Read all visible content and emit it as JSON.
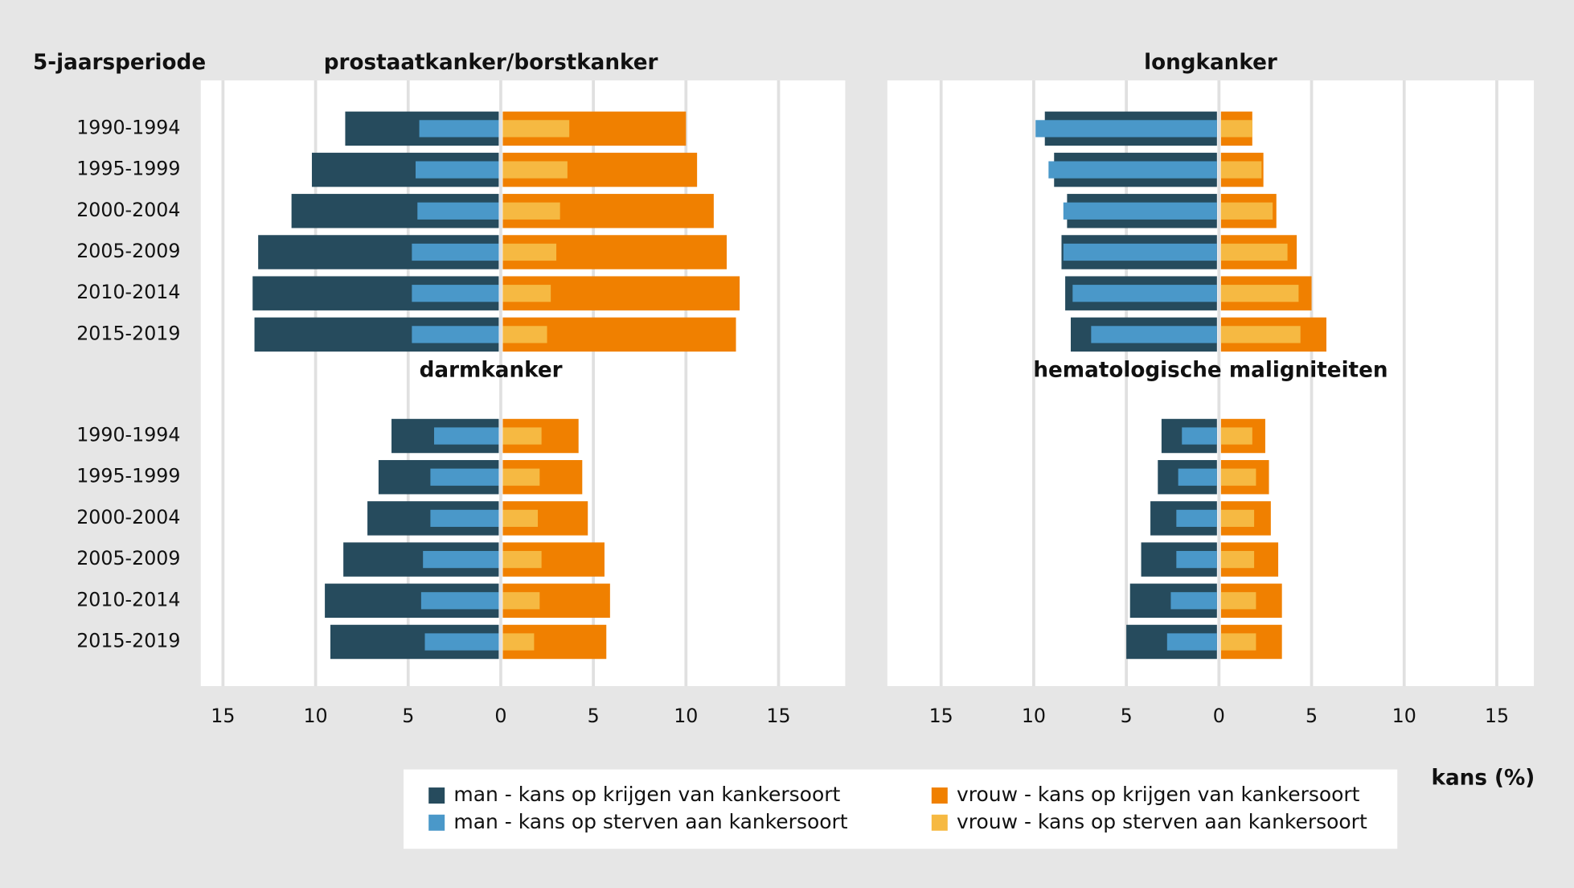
{
  "row_header": "5-jaarsperiode",
  "axis_label": "kans (%)",
  "chart_data": [
    {
      "type": "bar",
      "orientation": "horizontal",
      "title": "prostaatkanker/borstkanker",
      "categories": [
        "1990-1994",
        "1995-1999",
        "2000-2004",
        "2005-2009",
        "2010-2014",
        "2015-2019"
      ],
      "series": [
        {
          "name": "man - kans op krijgen van kankersoort",
          "color": "#264b5d",
          "values": [
            -8.4,
            -10.2,
            -11.3,
            -13.1,
            -13.4,
            -13.3
          ]
        },
        {
          "name": "man - kans op sterven aan kankersoort",
          "color": "#4a98c9",
          "values": [
            -4.4,
            -4.6,
            -4.5,
            -4.8,
            -4.8,
            -4.8
          ]
        },
        {
          "name": "vrouw - kans op krijgen van kankersoort",
          "color": "#f08000",
          "values": [
            10.0,
            10.6,
            11.5,
            12.2,
            12.9,
            12.7
          ]
        },
        {
          "name": " vrouw - kans op sterven aan kankersoort",
          "color": "#f6b942",
          "values": [
            3.7,
            3.6,
            3.2,
            3.0,
            2.7,
            2.5
          ]
        }
      ]
    },
    {
      "type": "bar",
      "orientation": "horizontal",
      "title": "longkanker",
      "series": [
        {
          "color": "#264b5d",
          "values": [
            -9.4,
            -8.9,
            -8.2,
            -8.5,
            -8.3,
            -8.0
          ]
        },
        {
          "color": "#4a98c9",
          "values": [
            -9.9,
            -9.2,
            -8.4,
            -8.4,
            -7.9,
            -6.9
          ]
        },
        {
          "color": "#f08000",
          "values": [
            1.8,
            2.4,
            3.1,
            4.2,
            5.0,
            5.8
          ]
        },
        {
          "color": "#f6b942",
          "values": [
            1.8,
            2.3,
            2.9,
            3.7,
            4.3,
            4.4
          ]
        }
      ]
    },
    {
      "type": "bar",
      "orientation": "horizontal",
      "title": "darmkanker",
      "categories": [
        "1990-1994",
        "1995-1999",
        "2000-2004",
        "2005-2009",
        "2010-2014",
        "2015-2019"
      ],
      "series": [
        {
          "color": "#264b5d",
          "values": [
            -5.9,
            -6.6,
            -7.2,
            -8.5,
            -9.5,
            -9.2
          ]
        },
        {
          "color": "#4a98c9",
          "values": [
            -3.6,
            -3.8,
            -3.8,
            -4.2,
            -4.3,
            -4.1
          ]
        },
        {
          "color": "#f08000",
          "values": [
            4.2,
            4.4,
            4.7,
            5.6,
            5.9,
            5.7
          ]
        },
        {
          "color": "#f6b942",
          "values": [
            2.2,
            2.1,
            2.0,
            2.2,
            2.1,
            1.8
          ]
        }
      ],
      "xlim": [
        -16.2,
        18.6
      ],
      "xticks": [
        {
          "value": -15,
          "label": "15"
        },
        {
          "value": -10,
          "label": "10"
        },
        {
          "value": -5,
          "label": "5"
        },
        0,
        5,
        10,
        15
      ]
    },
    {
      "type": "bar",
      "orientation": "horizontal",
      "title": "hematologische maligniteiten",
      "series": [
        {
          "color": "#264b5d",
          "values": [
            -3.1,
            -3.3,
            -3.7,
            -4.2,
            -4.8,
            -5.0
          ]
        },
        {
          "color": "#4a98c9",
          "values": [
            -2.0,
            -2.2,
            -2.3,
            -2.3,
            -2.6,
            -2.8
          ]
        },
        {
          "color": "#f08000",
          "values": [
            2.5,
            2.7,
            2.8,
            3.2,
            3.4,
            3.4
          ]
        },
        {
          "color": "#f6b942",
          "values": [
            1.8,
            2.0,
            1.9,
            1.9,
            2.0,
            2.0
          ]
        }
      ],
      "xlim": [
        -17.9,
        17.0
      ],
      "xticks": [
        {
          "value": -15,
          "label": "15"
        },
        {
          "value": -10,
          "label": "10"
        },
        {
          "value": -5,
          "label": "5"
        },
        0,
        5,
        10,
        15
      ]
    }
  ]
}
